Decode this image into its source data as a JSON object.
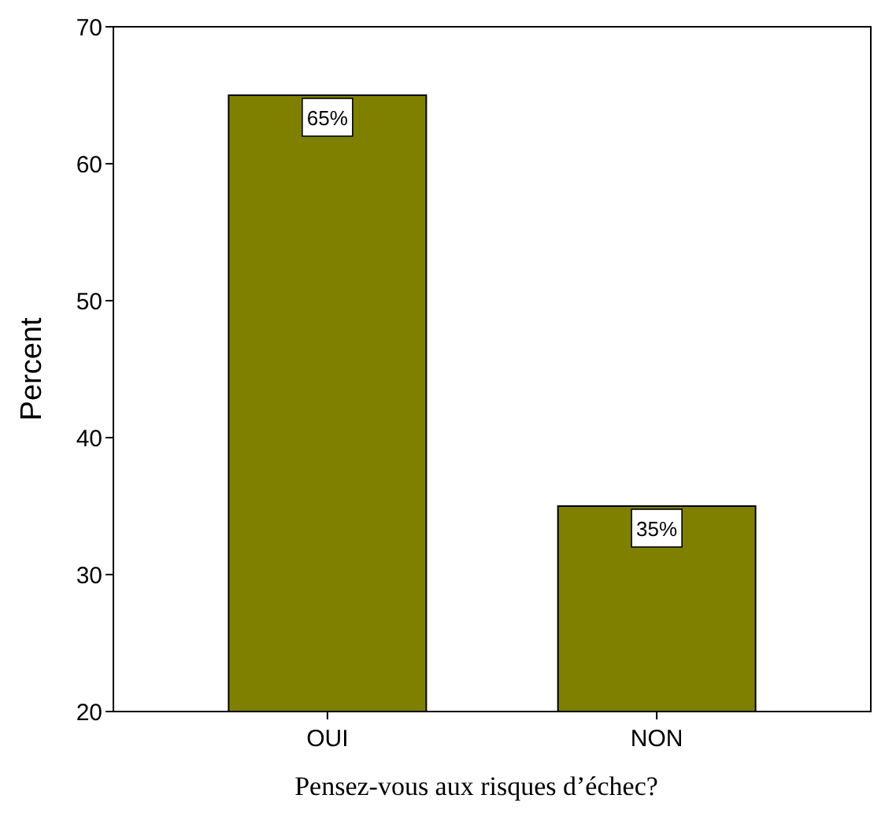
{
  "chart_data": {
    "type": "bar",
    "xlabel": "Pensez-vous aux risques d’échec?",
    "ylabel": "Percent",
    "categories": [
      "OUI",
      "NON"
    ],
    "values": [
      65,
      35
    ],
    "value_labels": [
      "65%",
      "35%"
    ],
    "color": "#808000",
    "ylim": [
      20,
      70
    ],
    "yticks": [
      20,
      30,
      40,
      50,
      60,
      70
    ],
    "grid": false
  }
}
